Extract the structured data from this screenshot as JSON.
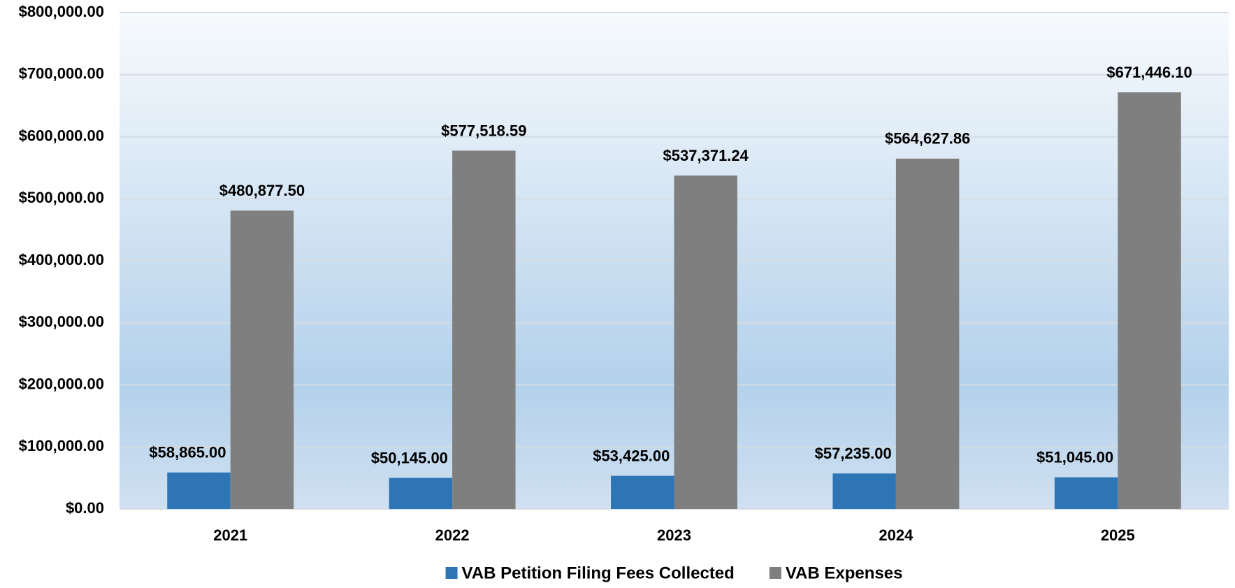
{
  "chart_data": {
    "type": "bar",
    "categories": [
      "2021",
      "2022",
      "2023",
      "2024",
      "2025"
    ],
    "series": [
      {
        "name": "VAB Petition Filing Fees Collected",
        "color": "#2e75b6",
        "values": [
          58865.0,
          50145.0,
          53425.0,
          57235.0,
          51045.0
        ],
        "value_labels": [
          "$58,865.00",
          "$50,145.00",
          "$53,425.00",
          "$57,235.00",
          "$51,045.00"
        ]
      },
      {
        "name": "VAB Expenses",
        "color": "#7f7f7f",
        "values": [
          480877.5,
          577518.59,
          537371.24,
          564627.86,
          671446.1
        ],
        "value_labels": [
          "$480,877.50",
          "$577,518.59",
          "$537,371.24",
          "$564,627.86",
          "$671,446.10"
        ]
      }
    ],
    "ylim": [
      0,
      800000
    ],
    "yticks": [
      {
        "value": 0,
        "label": "$0.00"
      },
      {
        "value": 100000,
        "label": "$100,000.00"
      },
      {
        "value": 200000,
        "label": "$200,000.00"
      },
      {
        "value": 300000,
        "label": "$300,000.00"
      },
      {
        "value": 400000,
        "label": "$400,000.00"
      },
      {
        "value": 500000,
        "label": "$500,000.00"
      },
      {
        "value": 600000,
        "label": "$600,000.00"
      },
      {
        "value": 700000,
        "label": "$700,000.00"
      },
      {
        "value": 800000,
        "label": "$800,000.00"
      }
    ],
    "grid": true,
    "legend": "bottom"
  }
}
